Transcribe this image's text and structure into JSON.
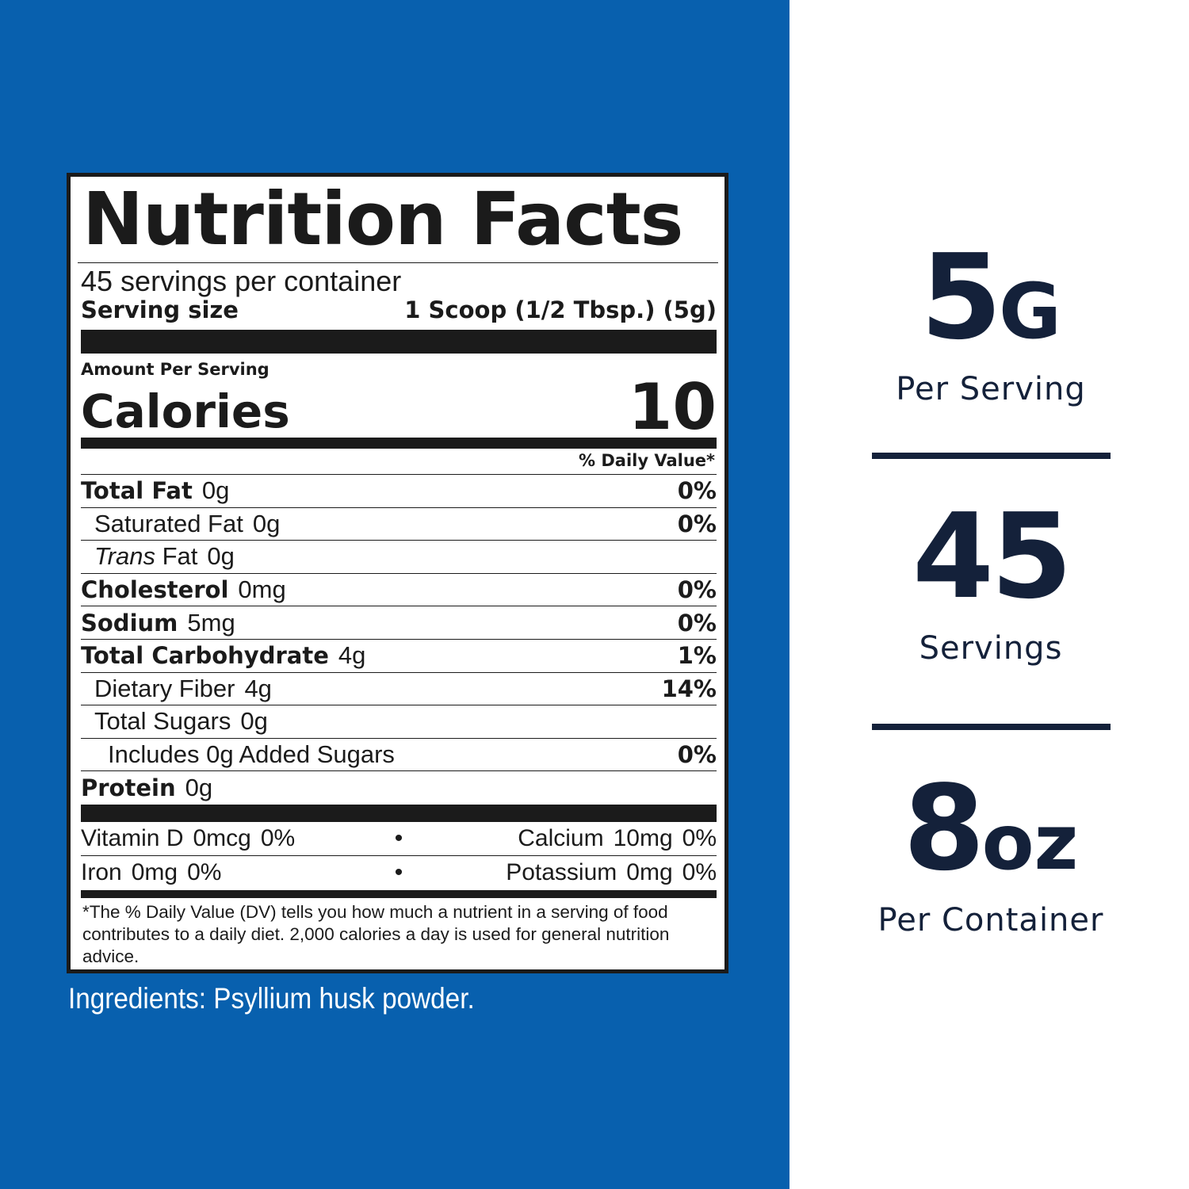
{
  "label": {
    "title": "Nutrition Facts",
    "servings_per_container": "45 servings per container",
    "serving_size_label": "Serving size",
    "serving_size_value": "1 Scoop (1/2 Tbsp.) (5g)",
    "amount_per_serving": "Amount Per Serving",
    "calories_label": "Calories",
    "calories_value": "10",
    "daily_value_header": "% Daily Value*",
    "nutrients": [
      {
        "name": "Total Fat",
        "amount": "0g",
        "dv": "0%"
      },
      {
        "name": "Saturated Fat",
        "amount": "0g",
        "dv": "0%"
      },
      {
        "name_italic": "Trans",
        "name": " Fat",
        "amount": "0g",
        "dv": ""
      },
      {
        "name": "Cholesterol",
        "amount": "0mg",
        "dv": "0%"
      },
      {
        "name": "Sodium",
        "amount": "5mg",
        "dv": "0%"
      },
      {
        "name": "Total Carbohydrate",
        "amount": "4g",
        "dv": "1%"
      },
      {
        "name": "Dietary Fiber",
        "amount": "4g",
        "dv": "14%"
      },
      {
        "name": "Total Sugars",
        "amount": "0g",
        "dv": ""
      },
      {
        "name": "Includes 0g Added Sugars",
        "dv": "0%"
      },
      {
        "name": "Protein",
        "amount": "0g",
        "dv": ""
      }
    ],
    "vitamins": [
      {
        "left_name": "Vitamin D",
        "left_amount": "0mcg",
        "left_dv": "0%",
        "right_name": "Calcium",
        "right_amount": "10mg",
        "right_dv": "0%"
      },
      {
        "left_name": "Iron",
        "left_amount": "0mg",
        "left_dv": "0%",
        "right_name": "Potassium",
        "right_amount": "0mg",
        "right_dv": "0%"
      }
    ],
    "separator": "•",
    "footnote": "*The % Daily Value (DV) tells you how much a nutrient in a serving of food contributes to a daily diet. 2,000 calories a day is used for general nutrition advice."
  },
  "ingredients": "Ingredients: Psyllium husk powder.",
  "stats": [
    {
      "value": "5",
      "unit": "G",
      "caption": "Per Serving"
    },
    {
      "value": "45",
      "unit": "",
      "caption": "Servings"
    },
    {
      "value": "8",
      "unit": "oz",
      "caption": "Per Container"
    }
  ],
  "colors": {
    "panel_blue": "#0860ae",
    "label_ink": "#1b1b1b",
    "stat_navy": "#14213a"
  }
}
